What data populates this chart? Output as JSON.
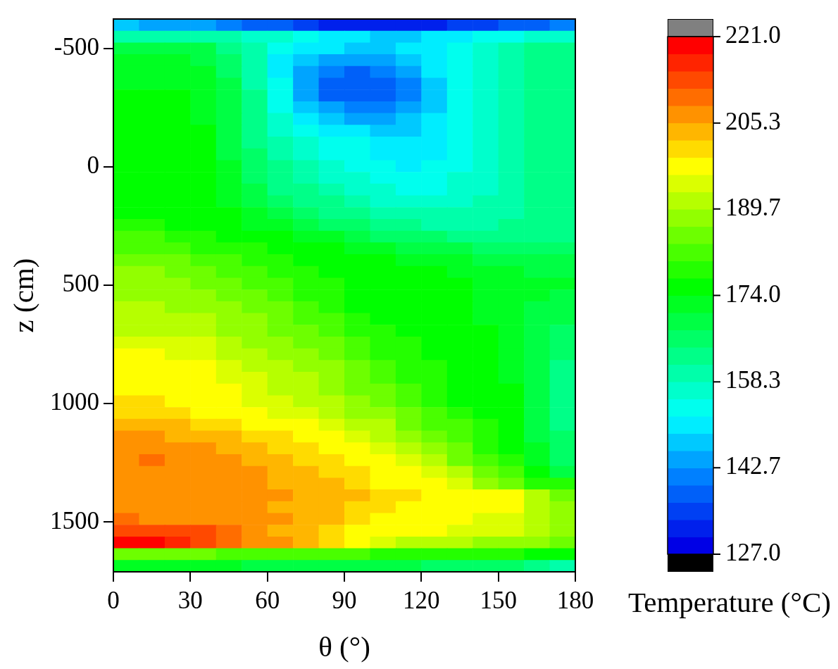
{
  "chart_data": {
    "type": "heatmap",
    "xlabel": "θ (°)",
    "ylabel": "z (cm)",
    "clabel": "Temperature (°C)",
    "xlim": [
      0,
      180
    ],
    "xticks": [
      0,
      30,
      60,
      90,
      120,
      150,
      180
    ],
    "ylim": [
      1710,
      -625
    ],
    "yticks": [
      -500,
      0,
      500,
      1000,
      1500
    ],
    "clim": [
      127,
      221
    ],
    "cticks": [
      {
        "value": 127,
        "label": "127.0"
      },
      142.7,
      158.3,
      {
        "value": 174,
        "label": "174.0"
      },
      189.7,
      205.3,
      {
        "value": 221,
        "label": "221.0"
      }
    ],
    "cells": [
      [
        146,
        145,
        144,
        143,
        141,
        139,
        137,
        135,
        133,
        132,
        131,
        131,
        132,
        134,
        136,
        138,
        139,
        140
      ],
      [
        161,
        161,
        160,
        160,
        159,
        158,
        156,
        153,
        150,
        149,
        148,
        148,
        149,
        151,
        153,
        155,
        157,
        158
      ],
      [
        170,
        170,
        169,
        168,
        164,
        159,
        153,
        150,
        149,
        148,
        148,
        149,
        150,
        153,
        157,
        160,
        162,
        163
      ],
      [
        171,
        171,
        171,
        170,
        166,
        160,
        151,
        146,
        145,
        145,
        145,
        147,
        150,
        153,
        157,
        160,
        162,
        163
      ],
      [
        172,
        172,
        172,
        171,
        167,
        161,
        152,
        144,
        140,
        139,
        140,
        143,
        149,
        154,
        158,
        161,
        162,
        163
      ],
      [
        173,
        173,
        173,
        172,
        168,
        161,
        153,
        143,
        138,
        137,
        137,
        142,
        148,
        154,
        158,
        161,
        163,
        164
      ],
      [
        174,
        174,
        174,
        173,
        168,
        162,
        154,
        144,
        139,
        137,
        138,
        142,
        148,
        154,
        158,
        161,
        163,
        164
      ],
      [
        175,
        175,
        174,
        173,
        168,
        162,
        155,
        148,
        143,
        141,
        141,
        144,
        148,
        154,
        158,
        161,
        163,
        164
      ],
      [
        175,
        175,
        175,
        173,
        169,
        163,
        157,
        151,
        147,
        145,
        145,
        146,
        150,
        154,
        158,
        161,
        163,
        164
      ],
      [
        175,
        175,
        175,
        174,
        169,
        163,
        158,
        154,
        151,
        150,
        148,
        148,
        150,
        153,
        157,
        160,
        162,
        163
      ],
      [
        175,
        175,
        175,
        174,
        170,
        164,
        159,
        156,
        154,
        153,
        150,
        149,
        150,
        154,
        157,
        160,
        162,
        163
      ],
      [
        176,
        176,
        175,
        174,
        170,
        165,
        160,
        157,
        155,
        154,
        152,
        151,
        151,
        154,
        157,
        160,
        162,
        163
      ],
      [
        176,
        176,
        176,
        175,
        171,
        166,
        162,
        159,
        157,
        155,
        153,
        152,
        153,
        155,
        157,
        160,
        162,
        163
      ],
      [
        176,
        176,
        176,
        175,
        171,
        167,
        163,
        160,
        158,
        157,
        154,
        154,
        154,
        156,
        158,
        160,
        162,
        163
      ],
      [
        177,
        177,
        176,
        175,
        172,
        168,
        164,
        162,
        160,
        158,
        156,
        155,
        155,
        156,
        158,
        160,
        162,
        163
      ],
      [
        176,
        176,
        176,
        175,
        173,
        169,
        166,
        164,
        162,
        160,
        158,
        157,
        157,
        158,
        159,
        160,
        162,
        163
      ],
      [
        177,
        176,
        176,
        175,
        174,
        171,
        168,
        166,
        164,
        162,
        161,
        159,
        159,
        159,
        160,
        161,
        162,
        163
      ],
      [
        178,
        178,
        177,
        176,
        175,
        173,
        171,
        169,
        167,
        165,
        163,
        162,
        161,
        161,
        161,
        162,
        162,
        163
      ],
      [
        181,
        181,
        180,
        178,
        177,
        176,
        175,
        173,
        171,
        169,
        167,
        166,
        165,
        164,
        164,
        164,
        164,
        164
      ],
      [
        182,
        182,
        181,
        180,
        179,
        178,
        177,
        176,
        175,
        173,
        171,
        170,
        169,
        168,
        167,
        166,
        166,
        166
      ],
      [
        185,
        184,
        184,
        183,
        181,
        180,
        178,
        177,
        176,
        175,
        174,
        173,
        172,
        171,
        170,
        169,
        168,
        168
      ],
      [
        187,
        187,
        186,
        185,
        183,
        181,
        180,
        178,
        177,
        176,
        176,
        175,
        174,
        173,
        172,
        171,
        170,
        170
      ],
      [
        189,
        188,
        188,
        186,
        185,
        183,
        181,
        179,
        178,
        177,
        176,
        175,
        175,
        174,
        173,
        172,
        171,
        171
      ],
      [
        189,
        189,
        188,
        187,
        186,
        184,
        182,
        180,
        178,
        177,
        176,
        175,
        175,
        174,
        173,
        172,
        171,
        170
      ],
      [
        190,
        190,
        189,
        188,
        187,
        185,
        184,
        182,
        180,
        177,
        176,
        175,
        174,
        174,
        173,
        171,
        170,
        169
      ],
      [
        191,
        191,
        190,
        190,
        188,
        187,
        185,
        183,
        181,
        178,
        177,
        176,
        175,
        174,
        173,
        172,
        170,
        168
      ],
      [
        192,
        192,
        192,
        191,
        189,
        188,
        186,
        184,
        182,
        180,
        178,
        177,
        176,
        175,
        174,
        172,
        170,
        167
      ],
      [
        194,
        194,
        194,
        193,
        191,
        189,
        188,
        186,
        184,
        182,
        179,
        178,
        176,
        175,
        174,
        172,
        169,
        166
      ],
      [
        196,
        196,
        195,
        195,
        192,
        191,
        189,
        188,
        185,
        183,
        180,
        179,
        176,
        176,
        175,
        173,
        168,
        165
      ],
      [
        197,
        197,
        197,
        196,
        193,
        192,
        190,
        189,
        187,
        184,
        182,
        180,
        178,
        176,
        175,
        173,
        168,
        164
      ],
      [
        198,
        198,
        198,
        197,
        194,
        193,
        191,
        190,
        188,
        185,
        183,
        180,
        178,
        176,
        175,
        172,
        168,
        164
      ],
      [
        199,
        199,
        198,
        198,
        196,
        194,
        192,
        191,
        189,
        186,
        184,
        181,
        179,
        177,
        176,
        174,
        168,
        164
      ],
      [
        201,
        200,
        198,
        198,
        196,
        194,
        193,
        191,
        190,
        187,
        185,
        182,
        180,
        177,
        176,
        175,
        169,
        164
      ],
      [
        202,
        202,
        201,
        199,
        198,
        196,
        195,
        193,
        192,
        189,
        187,
        184,
        182,
        179,
        177,
        176,
        169,
        164
      ],
      [
        204,
        204,
        203,
        201,
        200,
        198,
        198,
        196,
        194,
        191,
        190,
        186,
        183,
        181,
        178,
        176,
        169,
        164
      ],
      [
        206,
        206,
        205,
        204,
        203,
        201,
        200,
        198,
        196,
        194,
        192,
        188,
        185,
        182,
        179,
        176,
        170,
        165
      ],
      [
        208,
        207,
        207,
        207,
        205,
        204,
        202,
        201,
        199,
        197,
        195,
        192,
        188,
        184,
        179,
        176,
        171,
        165
      ],
      [
        207,
        209,
        207,
        207,
        206,
        205,
        203,
        202,
        200,
        199,
        197,
        194,
        190,
        186,
        182,
        178,
        172,
        166
      ],
      [
        207,
        207,
        207,
        207,
        207,
        206,
        204,
        204,
        202,
        201,
        198,
        197,
        194,
        190,
        186,
        182,
        176,
        169
      ],
      [
        207,
        207,
        207,
        207,
        207,
        207,
        205,
        204,
        203,
        201,
        199,
        198,
        196,
        193,
        189,
        185,
        180,
        178
      ],
      [
        207,
        207,
        207,
        207,
        207,
        207,
        206,
        204,
        204,
        203,
        201,
        201,
        199,
        198,
        198,
        197,
        192,
        186
      ],
      [
        208,
        207,
        207,
        207,
        207,
        207,
        205,
        204,
        203,
        202,
        200,
        198,
        198,
        198,
        197,
        196,
        192,
        188
      ],
      [
        210,
        208,
        207,
        207,
        207,
        207,
        206,
        204,
        203,
        201,
        199,
        198,
        197,
        196,
        194,
        193,
        191,
        188
      ],
      [
        213,
        213,
        213,
        212,
        210,
        207,
        205,
        204,
        201,
        199,
        198,
        198,
        197,
        195,
        194,
        193,
        191,
        189
      ],
      [
        218,
        218,
        217,
        214,
        211,
        208,
        206,
        203,
        200,
        197,
        194,
        192,
        191,
        190,
        189,
        188,
        187,
        186
      ],
      [
        184,
        184,
        184,
        184,
        183,
        183,
        183,
        182,
        182,
        181,
        180,
        180,
        179,
        179,
        178,
        178,
        177,
        177
      ],
      [
        171,
        171,
        171,
        171,
        171,
        170,
        170,
        170,
        169,
        169,
        168,
        168,
        167,
        167,
        166,
        165,
        163,
        161
      ]
    ]
  }
}
